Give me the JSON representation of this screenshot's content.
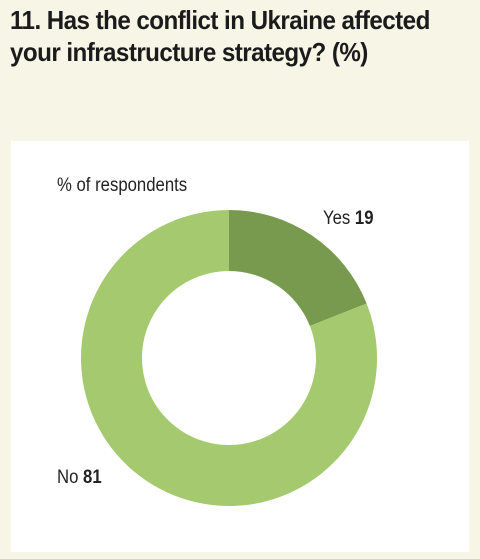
{
  "header": {
    "title": "11. Has the conflict in Ukraine affected your infrastructure strategy? (%)"
  },
  "colors": {
    "background": "#f6f5e6",
    "panel": "#ffffff",
    "yes": "#789a4f",
    "no": "#a4c96e"
  },
  "chart_data": {
    "type": "pie",
    "style": "donut",
    "subtitle": "% of respondents",
    "slices": [
      {
        "label": "Yes",
        "value": 19,
        "color": "#789a4f"
      },
      {
        "label": "No",
        "value": 81,
        "color": "#a4c96e"
      }
    ]
  }
}
